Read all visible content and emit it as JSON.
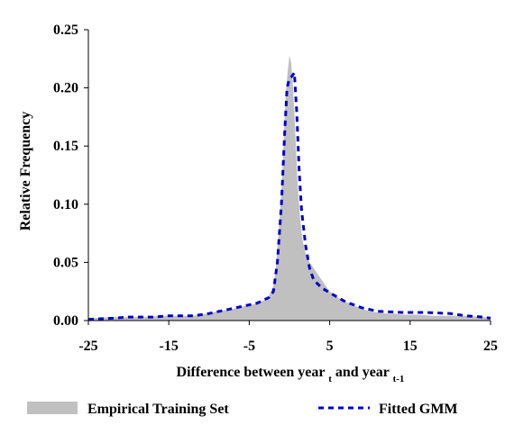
{
  "chart_data": {
    "type": "area",
    "title": "",
    "xlabel": {
      "text": "Difference between year",
      "sub1": "t",
      "mid": " and year",
      "sub2": "t-1"
    },
    "ylabel": "Relative Frequency",
    "xlim": [
      -25,
      25
    ],
    "ylim": [
      0,
      0.25
    ],
    "x_ticks": [
      -25,
      -15,
      -5,
      5,
      15,
      25
    ],
    "x_tick_labels": [
      "-25",
      "-15",
      "-5",
      "5",
      "15",
      "25"
    ],
    "y_ticks": [
      0,
      0.05,
      0.1,
      0.15,
      0.2,
      0.25
    ],
    "y_tick_labels": [
      "0.00",
      "0.05",
      "0.10",
      "0.15",
      "0.20",
      "0.25"
    ],
    "grid": false,
    "legend_placement": "bottom",
    "series": [
      {
        "name": "Empirical Training Set",
        "kind": "area",
        "color": "#c0c0c0",
        "points": [
          [
            -25,
            0.002
          ],
          [
            -22,
            0.003
          ],
          [
            -20,
            0.003
          ],
          [
            -18,
            0.003
          ],
          [
            -16,
            0.004
          ],
          [
            -14,
            0.004
          ],
          [
            -12,
            0.004
          ],
          [
            -10,
            0.006
          ],
          [
            -9,
            0.008
          ],
          [
            -8,
            0.009
          ],
          [
            -7,
            0.01
          ],
          [
            -6,
            0.012
          ],
          [
            -5,
            0.013
          ],
          [
            -4,
            0.015
          ],
          [
            -3,
            0.018
          ],
          [
            -2.5,
            0.022
          ],
          [
            -2,
            0.03
          ],
          [
            -1.7,
            0.045
          ],
          [
            -1.4,
            0.07
          ],
          [
            -1.1,
            0.1
          ],
          [
            -0.8,
            0.14
          ],
          [
            -0.6,
            0.175
          ],
          [
            -0.4,
            0.2
          ],
          [
            -0.2,
            0.215
          ],
          [
            0,
            0.228
          ],
          [
            0.2,
            0.222
          ],
          [
            0.4,
            0.205
          ],
          [
            0.6,
            0.18
          ],
          [
            0.8,
            0.15
          ],
          [
            1,
            0.12
          ],
          [
            1.3,
            0.09
          ],
          [
            1.6,
            0.07
          ],
          [
            2,
            0.058
          ],
          [
            2.5,
            0.05
          ],
          [
            3,
            0.045
          ],
          [
            3.5,
            0.04
          ],
          [
            4,
            0.035
          ],
          [
            5,
            0.025
          ],
          [
            6,
            0.02
          ],
          [
            7,
            0.016
          ],
          [
            8,
            0.013
          ],
          [
            9,
            0.01
          ],
          [
            10,
            0.008
          ],
          [
            11,
            0.007
          ],
          [
            12,
            0.006
          ],
          [
            13,
            0.006
          ],
          [
            14,
            0.005
          ],
          [
            16,
            0.005
          ],
          [
            18,
            0.004
          ],
          [
            20,
            0.004
          ],
          [
            22,
            0.004
          ],
          [
            24,
            0.003
          ],
          [
            25,
            0.003
          ]
        ]
      },
      {
        "name": "Fitted GMM",
        "kind": "line",
        "color": "#0000cc",
        "dash": "dashed",
        "points": [
          [
            -25,
            0.001
          ],
          [
            -22,
            0.002
          ],
          [
            -20,
            0.003
          ],
          [
            -17,
            0.003
          ],
          [
            -15,
            0.004
          ],
          [
            -12,
            0.004
          ],
          [
            -10,
            0.006
          ],
          [
            -8,
            0.009
          ],
          [
            -6,
            0.012
          ],
          [
            -4,
            0.015
          ],
          [
            -2.5,
            0.02
          ],
          [
            -2,
            0.025
          ],
          [
            -1.5,
            0.05
          ],
          [
            -1,
            0.1
          ],
          [
            -0.6,
            0.16
          ],
          [
            -0.3,
            0.2
          ],
          [
            0,
            0.208
          ],
          [
            0.3,
            0.21
          ],
          [
            0.6,
            0.213
          ],
          [
            0.9,
            0.18
          ],
          [
            1.2,
            0.13
          ],
          [
            1.5,
            0.095
          ],
          [
            2,
            0.065
          ],
          [
            2.5,
            0.045
          ],
          [
            3,
            0.035
          ],
          [
            4,
            0.028
          ],
          [
            5,
            0.024
          ],
          [
            6,
            0.02
          ],
          [
            7,
            0.016
          ],
          [
            9,
            0.011
          ],
          [
            11,
            0.008
          ],
          [
            14,
            0.007
          ],
          [
            17,
            0.007
          ],
          [
            20,
            0.006
          ],
          [
            22,
            0.004
          ],
          [
            24,
            0.003
          ],
          [
            25,
            0.002
          ]
        ]
      }
    ]
  }
}
